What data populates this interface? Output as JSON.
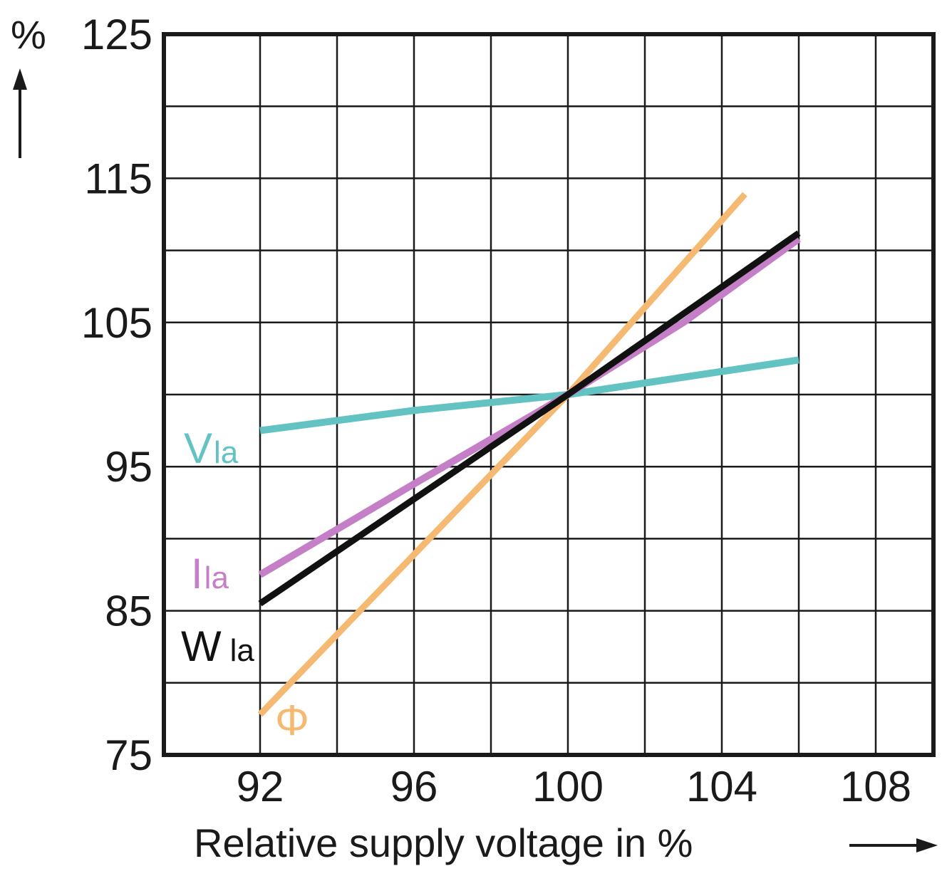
{
  "chart_data": {
    "type": "line",
    "title": "",
    "xlabel": "Relative supply voltage in %",
    "ylabel": "%",
    "xlim": [
      89.5,
      109.5
    ],
    "ylim": [
      75,
      125
    ],
    "x_ticks": [
      92,
      96,
      100,
      104,
      108
    ],
    "y_ticks": [
      75,
      85,
      95,
      105,
      115,
      125
    ],
    "x_grid_step": 2,
    "y_grid_step": 5,
    "grid": true,
    "legend": "inline labels at left end of each line",
    "series": [
      {
        "name": "V",
        "name_sub": "la",
        "color": "#63c3c3",
        "points": [
          [
            92,
            97.5
          ],
          [
            96,
            98.9
          ],
          [
            100,
            100
          ],
          [
            103,
            101.2
          ],
          [
            106,
            102.4
          ]
        ]
      },
      {
        "name": "I",
        "name_sub": "la",
        "color": "#c47fc7",
        "points": [
          [
            92,
            87.5
          ],
          [
            96,
            93.8
          ],
          [
            100,
            100
          ],
          [
            103,
            105
          ],
          [
            106,
            110.8
          ]
        ]
      },
      {
        "name": "W",
        "name_sub": "la",
        "color": "#111111",
        "points": [
          [
            92,
            85.5
          ],
          [
            100,
            100
          ],
          [
            106,
            111.2
          ]
        ]
      },
      {
        "name": "Φ",
        "name_sub": "",
        "color": "#f5b971",
        "points": [
          [
            92,
            77.8
          ],
          [
            96,
            88.9
          ],
          [
            100,
            100
          ],
          [
            104.6,
            113.9
          ]
        ]
      }
    ]
  }
}
